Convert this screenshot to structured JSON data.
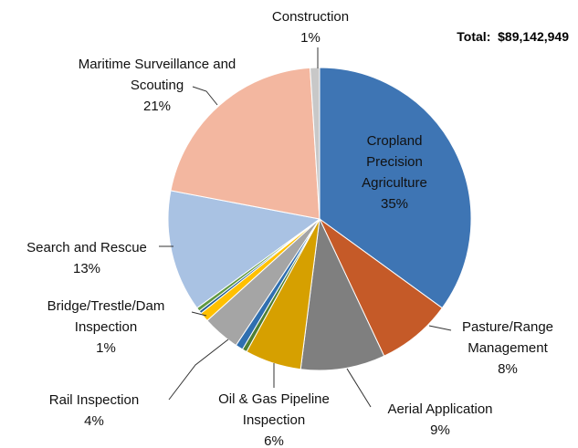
{
  "chart_data": {
    "type": "pie",
    "annotation": "Total:  $89,142,949",
    "categories": [
      "Cropland Precision Agriculture",
      "Pasture/Range Management",
      "Aerial Application",
      "Oil & Gas Pipeline Inspection",
      null,
      null,
      "Rail Inspection",
      "Bridge/Trestle/Dam Inspection",
      null,
      null,
      "Search and Rescue",
      "Maritime Surveillance and Scouting",
      "Construction"
    ],
    "values": [
      35,
      8,
      9,
      6,
      0.5,
      0.8,
      4,
      1,
      0.3,
      0.4,
      13,
      21,
      1
    ],
    "value_labels": [
      "35%",
      "8%",
      "9%",
      "6%",
      null,
      null,
      "4%",
      "1%",
      null,
      null,
      "13%",
      "21%",
      "1%"
    ],
    "colors": [
      "#3e75b4",
      "#c55a28",
      "#7f7f7f",
      "#d6a000",
      "#4f7f33",
      "#2f6fb0",
      "#a5a5a5",
      "#ffc000",
      "#255e91",
      "#609941",
      "#a9c2e3",
      "#f3b7a0",
      "#c8c8c8"
    ]
  }
}
